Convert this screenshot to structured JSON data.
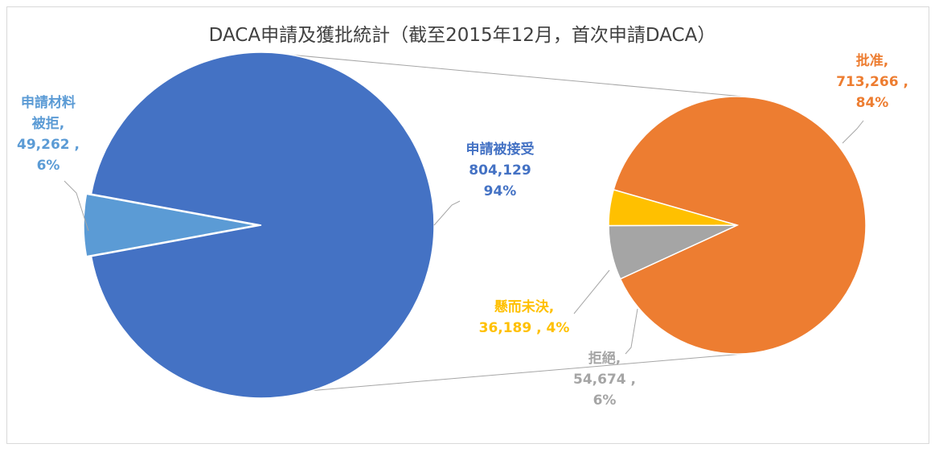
{
  "chart_data": {
    "type": "pie",
    "subtype": "pie-of-pie",
    "title": "DACA申請及獲批統計（截至2015年12月，首次申請DACA）",
    "main_pie": {
      "slices": [
        {
          "label": "申請被接受",
          "value": 804129,
          "percent": "94%",
          "color": "#4472c4",
          "label_lines": [
            "申請被接受",
            "804,129",
            "94%"
          ]
        },
        {
          "label": "申請材料被拒",
          "value": 49262,
          "percent": "6%",
          "color": "#5b9bd5",
          "label_lines": [
            "申請材料",
            "被拒,",
            "49,262 ,",
            "6%"
          ]
        }
      ]
    },
    "secondary_pie": {
      "slices": [
        {
          "label": "批准",
          "value": 713266,
          "percent": "84%",
          "color": "#ed7d31",
          "label_lines": [
            "批准,",
            "713,266 ,",
            "84%"
          ]
        },
        {
          "label": "拒絕",
          "value": 54674,
          "percent": "6%",
          "color": "#a5a5a5",
          "label_lines": [
            "拒絕,",
            "54,674 ,",
            "6%"
          ]
        },
        {
          "label": "懸而未決",
          "value": 36189,
          "percent": "4%",
          "color": "#ffc000",
          "label_lines": [
            "懸而未決,",
            "36,189 , 4%"
          ]
        }
      ]
    }
  }
}
